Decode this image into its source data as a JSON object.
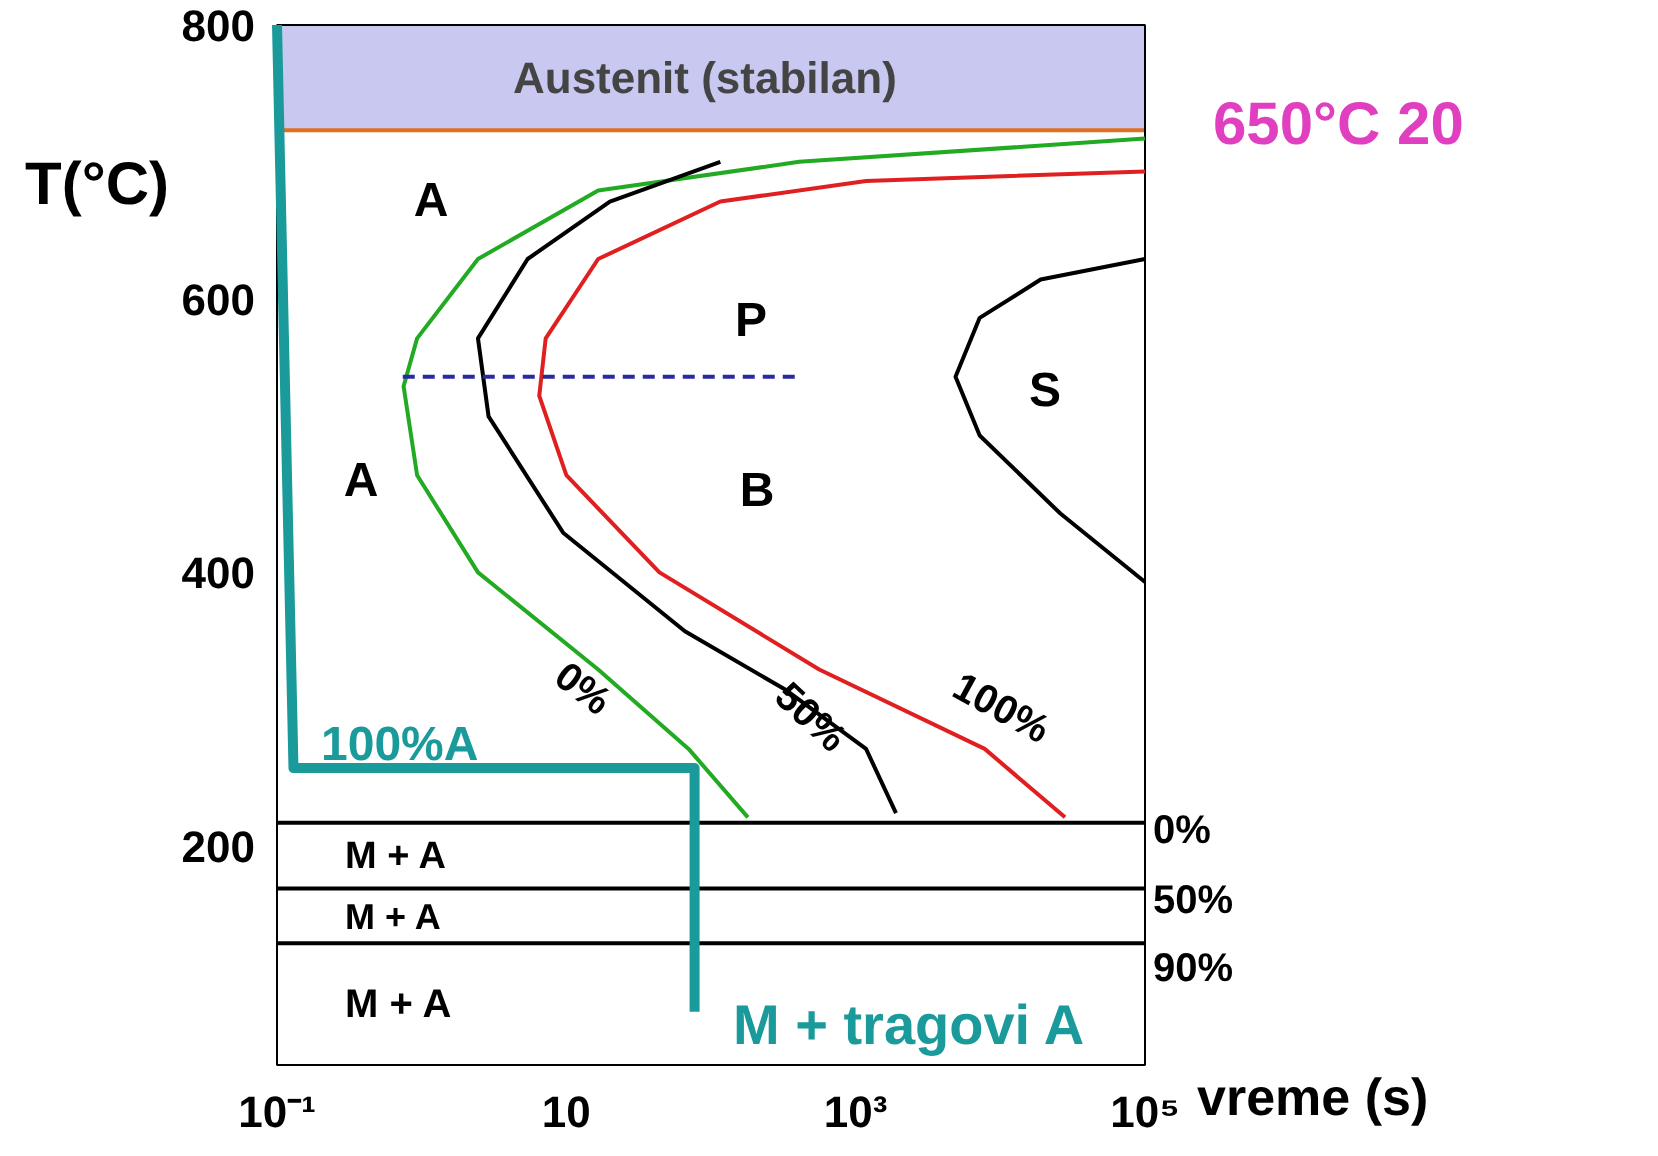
{
  "chart_data": {
    "type": "line",
    "xlabel": "vreme (s)",
    "ylabel": "T(°C)",
    "log": "x",
    "xlim": [
      0.1,
      100000
    ],
    "ylim": [
      40,
      800
    ],
    "xticks": [
      {
        "value": 0.1,
        "label": "10⁻¹"
      },
      10,
      {
        "value": 1000,
        "label": "10³"
      },
      {
        "value": 100000,
        "label": "10⁵"
      }
    ],
    "yticks": [
      200,
      400,
      600,
      800
    ],
    "grid": false,
    "marker": "none",
    "series": [
      {
        "name": "0%",
        "color": "#22aa22",
        "x": [
          100000,
          407,
          16.6,
          2.45,
          0.93,
          0.75,
          0.93,
          2.45,
          16.6,
          70,
          180
        ],
        "values": [
          717,
          700,
          679,
          629,
          571,
          536,
          471,
          400,
          329,
          271,
          221
        ]
      },
      {
        "name": "50%",
        "color": "#000000",
        "x": [
          116,
          20,
          5.4,
          2.45,
          2.9,
          9.5,
          66,
          330,
          1180,
          1900
        ],
        "values": [
          700,
          671,
          629,
          571,
          514,
          429,
          357,
          314,
          271,
          224
        ]
      },
      {
        "name": "100%",
        "color": "#e02020",
        "x": [
          100000,
          1180,
          116,
          16.6,
          7.2,
          6.5,
          10,
          44,
          560,
          7800,
          28000
        ],
        "values": [
          693,
          686,
          671,
          629,
          571,
          529,
          471,
          400,
          329,
          271,
          221
        ]
      },
      {
        "color": "#000000",
        "x": [
          100000,
          19000,
          7200,
          4900,
          7200,
          26000,
          100000
        ],
        "values": [
          629,
          614,
          586,
          543,
          500,
          443,
          393
        ]
      },
      {
        "color": "#2a2aa0",
        "x": [
          0.74,
          410
        ],
        "values": [
          543,
          543
        ],
        "line_style": "dashed"
      },
      {
        "color": "#1a9a9a",
        "x": [
          0.1,
          0.13,
          77,
          77
        ],
        "values": [
          800,
          257,
          257,
          79
        ]
      }
    ],
    "ref_lines": [
      {
        "axis": "y",
        "value": 723,
        "color": "#e07020"
      },
      {
        "axis": "y",
        "value": 217,
        "color": "#000000"
      },
      {
        "axis": "y",
        "value": 169,
        "color": "#000000"
      },
      {
        "axis": "y",
        "value": 129,
        "color": "#000000"
      }
    ],
    "bands": [
      {
        "axis": "y",
        "from": 723,
        "to": 800,
        "label": "Austenit  (stabilan)",
        "color": "#c8c8f0"
      }
    ],
    "annotations": [
      "650°C   20",
      "A",
      "A",
      "P",
      "B",
      "S",
      "100%A",
      "M + A",
      "M + A",
      "M + A",
      "M + tragovi A",
      "0%",
      "50%",
      "90%"
    ]
  }
}
